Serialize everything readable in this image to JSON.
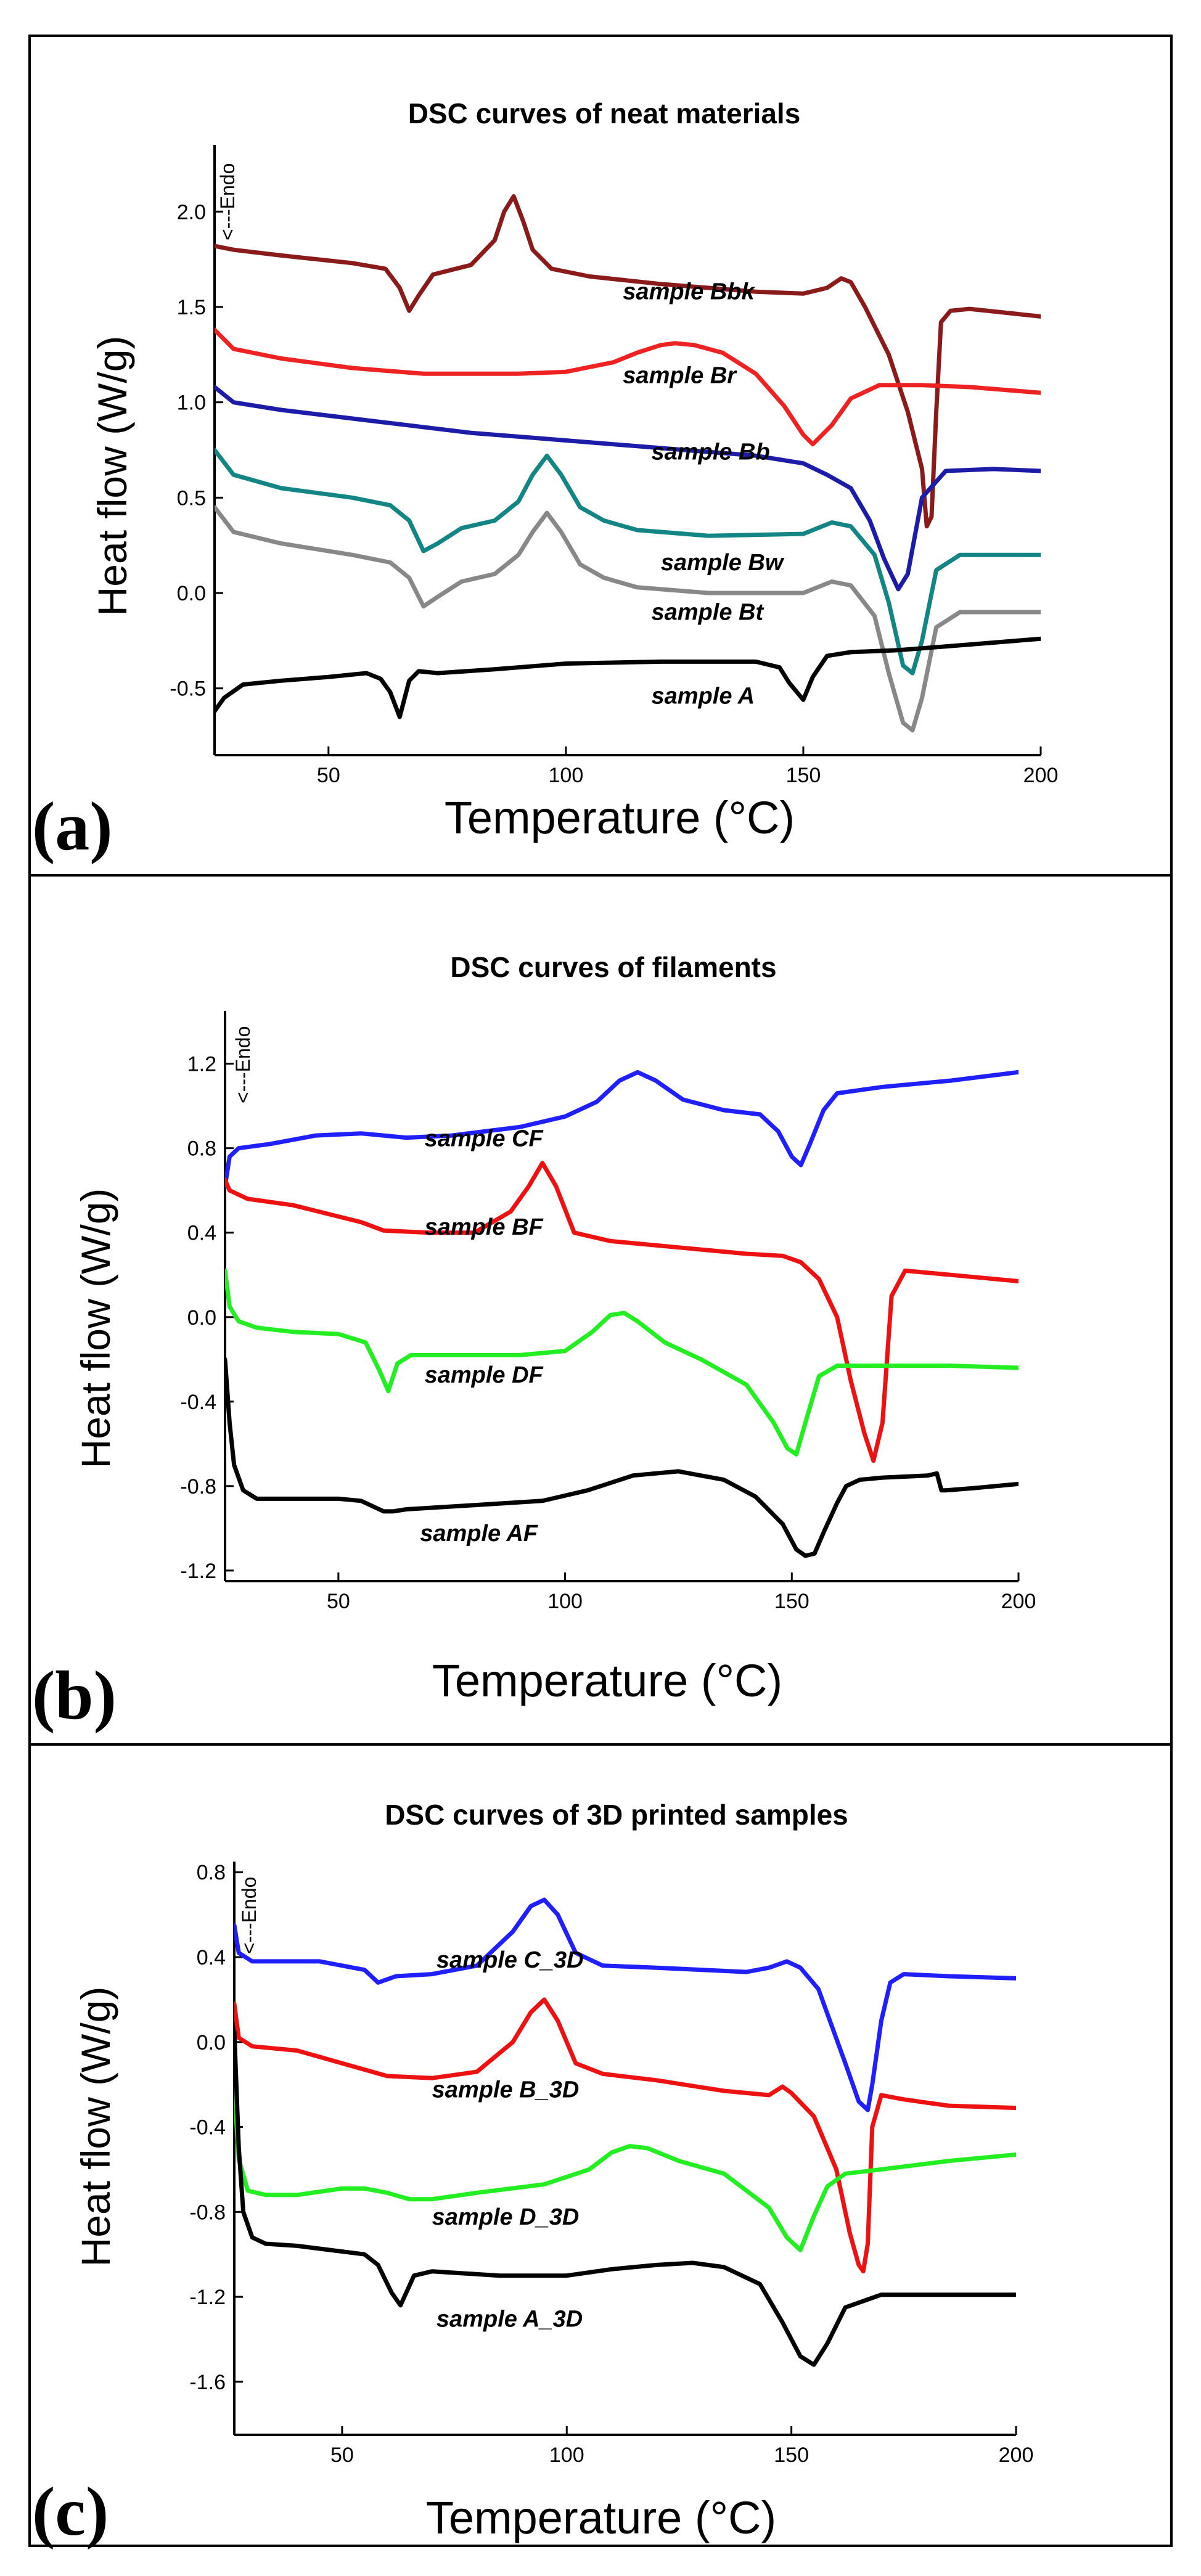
{
  "chart_data": [
    {
      "type": "line",
      "panel_label": "(a)",
      "title": "DSC curves of  neat materials",
      "xlabel": "Temperature (°C)",
      "ylabel": "Heat flow (W/g)",
      "xlim": [
        26,
        200
      ],
      "ylim": [
        -0.85,
        2.35
      ],
      "x_ticks": [
        50,
        100,
        150,
        200
      ],
      "y_ticks": [
        -0.5,
        0.0,
        0.5,
        1.0,
        1.5,
        2.0
      ],
      "x_tick_labels": [
        "50",
        "100",
        "150",
        "200"
      ],
      "y_tick_labels": [
        "-0.5",
        "0.0",
        "0.5",
        "1.0",
        "1.5",
        "2.0"
      ],
      "annotation": "<---Endo",
      "series": [
        {
          "name": "sample Bbk",
          "color": "#8B1A1A",
          "x": [
            26,
            30,
            40,
            55,
            62,
            65,
            67,
            69,
            72,
            80,
            85,
            87,
            89,
            91,
            93,
            97,
            105,
            120,
            140,
            150,
            155,
            158,
            160,
            163,
            168,
            172,
            175,
            176,
            177,
            178,
            179,
            181,
            185,
            200
          ],
          "y": [
            1.82,
            1.8,
            1.77,
            1.73,
            1.7,
            1.6,
            1.48,
            1.56,
            1.67,
            1.72,
            1.85,
            2.0,
            2.08,
            1.95,
            1.8,
            1.7,
            1.66,
            1.62,
            1.58,
            1.57,
            1.6,
            1.65,
            1.63,
            1.5,
            1.25,
            0.95,
            0.65,
            0.35,
            0.4,
            0.95,
            1.42,
            1.48,
            1.49,
            1.45
          ]
        },
        {
          "name": "sample Br",
          "color": "#EE2222",
          "x": [
            26,
            30,
            40,
            55,
            70,
            90,
            100,
            110,
            115,
            120,
            123,
            127,
            133,
            140,
            146,
            150,
            152,
            156,
            160,
            166,
            175,
            185,
            200
          ],
          "y": [
            1.38,
            1.28,
            1.23,
            1.18,
            1.15,
            1.15,
            1.16,
            1.21,
            1.26,
            1.3,
            1.31,
            1.3,
            1.26,
            1.15,
            0.98,
            0.83,
            0.78,
            0.88,
            1.02,
            1.09,
            1.09,
            1.08,
            1.05
          ]
        },
        {
          "name": "sample Bb",
          "color": "#1C1CA8",
          "x": [
            26,
            30,
            40,
            60,
            80,
            100,
            120,
            140,
            150,
            155,
            160,
            164,
            167,
            170,
            172,
            175,
            180,
            190,
            200
          ],
          "y": [
            1.08,
            1.0,
            0.96,
            0.9,
            0.84,
            0.8,
            0.76,
            0.72,
            0.68,
            0.62,
            0.55,
            0.38,
            0.18,
            0.02,
            0.1,
            0.5,
            0.64,
            0.65,
            0.64
          ]
        },
        {
          "name": "sample Bw",
          "color": "#138585",
          "x": [
            26,
            30,
            40,
            55,
            63,
            67,
            70,
            73,
            78,
            85,
            90,
            93,
            96,
            99,
            103,
            108,
            115,
            130,
            150,
            156,
            160,
            165,
            168,
            171,
            173,
            175,
            178,
            183,
            190,
            200
          ],
          "y": [
            0.75,
            0.62,
            0.55,
            0.5,
            0.46,
            0.38,
            0.22,
            0.26,
            0.34,
            0.38,
            0.48,
            0.62,
            0.72,
            0.62,
            0.45,
            0.38,
            0.33,
            0.3,
            0.31,
            0.37,
            0.35,
            0.2,
            -0.05,
            -0.38,
            -0.42,
            -0.25,
            0.12,
            0.2,
            0.2,
            0.2
          ]
        },
        {
          "name": "sample Bt",
          "color": "#888888",
          "x": [
            26,
            30,
            40,
            55,
            63,
            67,
            70,
            73,
            78,
            85,
            90,
            93,
            96,
            99,
            103,
            108,
            115,
            130,
            150,
            156,
            160,
            165,
            168,
            171,
            173,
            175,
            178,
            183,
            190,
            200
          ],
          "y": [
            0.45,
            0.32,
            0.26,
            0.2,
            0.16,
            0.08,
            -0.07,
            -0.02,
            0.06,
            0.1,
            0.2,
            0.32,
            0.42,
            0.32,
            0.15,
            0.08,
            0.03,
            0.0,
            0.0,
            0.06,
            0.04,
            -0.12,
            -0.42,
            -0.68,
            -0.72,
            -0.55,
            -0.18,
            -0.1,
            -0.1,
            -0.1
          ]
        },
        {
          "name": "sample A",
          "color": "#000000",
          "x": [
            26,
            28,
            32,
            40,
            50,
            58,
            61,
            63,
            65,
            67,
            69,
            73,
            85,
            100,
            120,
            140,
            145,
            147,
            150,
            152,
            155,
            160,
            170,
            185,
            200
          ],
          "y": [
            -0.62,
            -0.55,
            -0.48,
            -0.46,
            -0.44,
            -0.42,
            -0.45,
            -0.52,
            -0.65,
            -0.46,
            -0.41,
            -0.42,
            -0.4,
            -0.37,
            -0.36,
            -0.36,
            -0.39,
            -0.47,
            -0.56,
            -0.44,
            -0.33,
            -0.31,
            -0.3,
            -0.27,
            -0.24
          ]
        }
      ],
      "curve_labels": [
        "sample Bbk",
        "sample Br",
        "sample Bb",
        "sample Bw",
        "sample Bt",
        "sample A"
      ]
    },
    {
      "type": "line",
      "panel_label": "(b)",
      "title": "DSC curves of filaments",
      "xlabel": "Temperature (°C)",
      "ylabel": "Heat flow (W/g)",
      "xlim": [
        25,
        200
      ],
      "ylim": [
        -1.25,
        1.45
      ],
      "x_ticks": [
        50,
        100,
        150,
        200
      ],
      "y_ticks": [
        -1.2,
        -0.8,
        -0.4,
        0.0,
        0.4,
        0.8,
        1.2
      ],
      "x_tick_labels": [
        "50",
        "100",
        "150",
        "200"
      ],
      "y_tick_labels": [
        "-1.2",
        "-0.8",
        "-0.4",
        "0.0",
        "0.4",
        "0.8",
        "1.2"
      ],
      "annotation": "<---Endo",
      "series": [
        {
          "name": "sample CF",
          "color": "#1F1FFF",
          "x": [
            25,
            26,
            28,
            35,
            45,
            55,
            65,
            75,
            90,
            100,
            107,
            112,
            116,
            120,
            126,
            135,
            143,
            147,
            150,
            152,
            154,
            157,
            160,
            170,
            185,
            200
          ],
          "y": [
            0.62,
            0.76,
            0.8,
            0.82,
            0.86,
            0.87,
            0.85,
            0.86,
            0.9,
            0.95,
            1.02,
            1.12,
            1.16,
            1.12,
            1.03,
            0.98,
            0.96,
            0.88,
            0.76,
            0.72,
            0.82,
            0.98,
            1.06,
            1.09,
            1.12,
            1.16
          ]
        },
        {
          "name": "sample BF",
          "color": "#EE1111",
          "x": [
            25,
            26,
            30,
            40,
            55,
            60,
            70,
            80,
            88,
            92,
            95,
            98,
            102,
            110,
            125,
            140,
            148,
            152,
            156,
            160,
            163,
            166,
            168,
            170,
            172,
            175,
            185,
            200
          ],
          "y": [
            0.65,
            0.6,
            0.56,
            0.53,
            0.45,
            0.41,
            0.4,
            0.4,
            0.5,
            0.62,
            0.73,
            0.62,
            0.4,
            0.36,
            0.33,
            0.3,
            0.29,
            0.26,
            0.18,
            0.0,
            -0.3,
            -0.55,
            -0.68,
            -0.5,
            0.1,
            0.22,
            0.2,
            0.17
          ]
        },
        {
          "name": "sample DF",
          "color": "#22EE22",
          "x": [
            25,
            26,
            28,
            32,
            40,
            50,
            56,
            59,
            61,
            63,
            66,
            75,
            90,
            100,
            106,
            110,
            113,
            116,
            122,
            130,
            140,
            146,
            149,
            151,
            153,
            156,
            160,
            170,
            185,
            200
          ],
          "y": [
            0.22,
            0.05,
            -0.02,
            -0.05,
            -0.07,
            -0.08,
            -0.12,
            -0.25,
            -0.35,
            -0.22,
            -0.18,
            -0.18,
            -0.18,
            -0.16,
            -0.07,
            0.01,
            0.02,
            -0.02,
            -0.12,
            -0.2,
            -0.32,
            -0.5,
            -0.62,
            -0.65,
            -0.5,
            -0.28,
            -0.23,
            -0.23,
            -0.23,
            -0.24
          ]
        },
        {
          "name": "sample AF",
          "color": "#000000",
          "x": [
            25,
            26,
            27,
            29,
            32,
            40,
            50,
            55,
            58,
            60,
            62,
            65,
            80,
            95,
            105,
            115,
            125,
            135,
            142,
            148,
            151,
            153,
            155,
            157,
            160,
            162,
            165,
            170,
            180,
            182,
            183,
            184,
            190,
            200
          ],
          "y": [
            -0.2,
            -0.5,
            -0.7,
            -0.82,
            -0.86,
            -0.86,
            -0.86,
            -0.87,
            -0.9,
            -0.92,
            -0.92,
            -0.91,
            -0.89,
            -0.87,
            -0.82,
            -0.75,
            -0.73,
            -0.77,
            -0.85,
            -0.98,
            -1.1,
            -1.13,
            -1.12,
            -1.02,
            -0.88,
            -0.8,
            -0.77,
            -0.76,
            -0.75,
            -0.74,
            -0.82,
            -0.82,
            -0.81,
            -0.79
          ]
        }
      ],
      "curve_labels": [
        "sample CF",
        "sample BF",
        "sample DF",
        "sample AF"
      ]
    },
    {
      "type": "line",
      "panel_label": "(c)",
      "title": "DSC curves of 3D printed samples",
      "xlabel": "Temperature (°C)",
      "ylabel": "Heat flow (W/g)",
      "xlim": [
        26,
        200
      ],
      "ylim": [
        -1.85,
        0.85
      ],
      "x_ticks": [
        50,
        100,
        150,
        200
      ],
      "y_ticks": [
        -1.6,
        -1.2,
        -0.8,
        -0.4,
        0.0,
        0.4,
        0.8
      ],
      "x_tick_labels": [
        "50",
        "100",
        "150",
        "200"
      ],
      "y_tick_labels": [
        "-1.6",
        "-1.2",
        "-0.8",
        "-0.4",
        "0.0",
        "0.4",
        "0.8"
      ],
      "annotation": "<---Endo",
      "series": [
        {
          "name": "sample C_3D",
          "color": "#1F1FFF",
          "x": [
            26,
            27,
            30,
            45,
            55,
            58,
            62,
            70,
            80,
            88,
            92,
            95,
            98,
            102,
            108,
            120,
            140,
            145,
            149,
            152,
            156,
            162,
            165,
            167,
            168,
            170,
            172,
            175,
            185,
            200
          ],
          "y": [
            0.55,
            0.42,
            0.38,
            0.38,
            0.34,
            0.28,
            0.31,
            0.32,
            0.36,
            0.52,
            0.64,
            0.67,
            0.6,
            0.42,
            0.36,
            0.35,
            0.33,
            0.35,
            0.38,
            0.35,
            0.25,
            -0.1,
            -0.28,
            -0.32,
            -0.2,
            0.1,
            0.28,
            0.32,
            0.31,
            0.3
          ]
        },
        {
          "name": "sample B_3D",
          "color": "#EE1111",
          "x": [
            26,
            27,
            30,
            40,
            50,
            60,
            70,
            80,
            88,
            92,
            95,
            98,
            102,
            108,
            120,
            135,
            145,
            148,
            150,
            155,
            160,
            163,
            165,
            166,
            167,
            168,
            170,
            175,
            185,
            200
          ],
          "y": [
            0.18,
            0.02,
            -0.02,
            -0.04,
            -0.1,
            -0.16,
            -0.17,
            -0.14,
            0.0,
            0.14,
            0.2,
            0.1,
            -0.1,
            -0.15,
            -0.18,
            -0.23,
            -0.25,
            -0.21,
            -0.24,
            -0.35,
            -0.6,
            -0.9,
            -1.05,
            -1.08,
            -0.95,
            -0.4,
            -0.25,
            -0.27,
            -0.3,
            -0.31
          ]
        },
        {
          "name": "sample D_3D",
          "color": "#22EE22",
          "x": [
            26,
            27,
            29,
            33,
            40,
            50,
            55,
            60,
            65,
            70,
            80,
            95,
            105,
            110,
            114,
            118,
            125,
            135,
            145,
            149,
            152,
            155,
            158,
            162,
            170,
            185,
            200
          ],
          "y": [
            -0.22,
            -0.55,
            -0.7,
            -0.72,
            -0.72,
            -0.69,
            -0.69,
            -0.71,
            -0.74,
            -0.74,
            -0.71,
            -0.67,
            -0.6,
            -0.52,
            -0.49,
            -0.5,
            -0.56,
            -0.62,
            -0.78,
            -0.92,
            -0.98,
            -0.82,
            -0.68,
            -0.62,
            -0.6,
            -0.56,
            -0.53
          ]
        },
        {
          "name": "sample A_3D",
          "color": "#000000",
          "x": [
            26,
            27,
            28,
            30,
            33,
            40,
            55,
            58,
            61,
            63,
            66,
            70,
            85,
            100,
            110,
            120,
            128,
            135,
            143,
            148,
            152,
            155,
            158,
            162,
            170,
            185,
            200
          ],
          "y": [
            0.05,
            -0.5,
            -0.8,
            -0.92,
            -0.95,
            -0.96,
            -1.0,
            -1.05,
            -1.18,
            -1.24,
            -1.1,
            -1.08,
            -1.1,
            -1.1,
            -1.07,
            -1.05,
            -1.04,
            -1.06,
            -1.14,
            -1.32,
            -1.48,
            -1.52,
            -1.42,
            -1.25,
            -1.19,
            -1.19,
            -1.19
          ]
        }
      ],
      "curve_labels": [
        "sample C_3D",
        "sample B_3D",
        "sample D_3D",
        "sample A_3D"
      ]
    }
  ]
}
